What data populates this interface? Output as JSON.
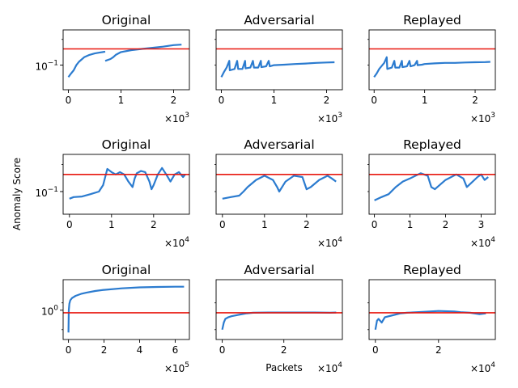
{
  "figure": {
    "ylabel": "Anomaly Score",
    "xlabel": "Packets"
  },
  "colors": {
    "series": "#2b7bcf",
    "threshold": "#e8170f",
    "axis": "#000000"
  },
  "chart_data": [
    {
      "type": "line",
      "title": "Original",
      "row": 0,
      "col": 0,
      "yscale": "log",
      "show_ytick": true,
      "ylim": [
        0.035,
        0.45
      ],
      "threshold": 0.2,
      "yticks": [
        {
          "v": 0.1,
          "text": "10",
          "sup": "−1"
        }
      ],
      "xlim": [
        -0.1,
        2.3
      ],
      "xticks": [
        "0",
        "1",
        "2"
      ],
      "xmult": "×10",
      "xmult_exp": "3",
      "series": [
        {
          "x": [
            0,
            0.05,
            0.1,
            0.15,
            0.2,
            0.3,
            0.4,
            0.5,
            0.6,
            0.7
          ],
          "y": [
            0.06,
            0.07,
            0.08,
            0.1,
            0.115,
            0.14,
            0.155,
            0.165,
            0.172,
            0.178
          ]
        },
        {
          "x": [
            0.7,
            0.75,
            0.8,
            0.85,
            0.9,
            1.0,
            1.2,
            1.4,
            1.6,
            1.8,
            2.0,
            2.15
          ],
          "y": [
            0.12,
            0.125,
            0.13,
            0.14,
            0.155,
            0.175,
            0.19,
            0.2,
            0.21,
            0.22,
            0.235,
            0.24
          ]
        }
      ]
    },
    {
      "type": "line",
      "title": "Adversarial",
      "row": 0,
      "col": 1,
      "yscale": "log",
      "show_ytick": false,
      "ylim": [
        0.035,
        0.45
      ],
      "threshold": 0.2,
      "yticks": [],
      "xlim": [
        -0.1,
        2.3
      ],
      "xticks": [
        "0",
        "1",
        "2"
      ],
      "xmult": "×10",
      "xmult_exp": "3",
      "series": [
        {
          "x": [
            0,
            0.05,
            0.1,
            0.15,
            0.16,
            0.25,
            0.3,
            0.32,
            0.4,
            0.45,
            0.46,
            0.55,
            0.6,
            0.62,
            0.7,
            0.75,
            0.76,
            0.85,
            0.9,
            0.92,
            1.0,
            1.2,
            1.4,
            1.6,
            1.8,
            2.0,
            2.15
          ],
          "y": [
            0.06,
            0.075,
            0.09,
            0.12,
            0.08,
            0.085,
            0.12,
            0.085,
            0.085,
            0.12,
            0.087,
            0.09,
            0.12,
            0.09,
            0.09,
            0.12,
            0.092,
            0.095,
            0.12,
            0.095,
            0.1,
            0.102,
            0.105,
            0.107,
            0.11,
            0.112,
            0.113
          ]
        }
      ]
    },
    {
      "type": "line",
      "title": "Replayed",
      "row": 0,
      "col": 2,
      "yscale": "log",
      "show_ytick": false,
      "ylim": [
        0.035,
        0.45
      ],
      "threshold": 0.2,
      "yticks": [],
      "xlim": [
        -0.1,
        2.4
      ],
      "xticks": [
        "0",
        "1",
        "2"
      ],
      "xmult": "×10",
      "xmult_exp": "3",
      "series": [
        {
          "x": [
            0,
            0.05,
            0.1,
            0.2,
            0.25,
            0.26,
            0.35,
            0.4,
            0.42,
            0.5,
            0.55,
            0.56,
            0.65,
            0.7,
            0.72,
            0.8,
            0.85,
            0.86,
            0.95,
            1.0,
            1.2,
            1.4,
            1.6,
            1.8,
            2.0,
            2.2,
            2.3
          ],
          "y": [
            0.06,
            0.07,
            0.085,
            0.11,
            0.14,
            0.085,
            0.09,
            0.12,
            0.09,
            0.09,
            0.12,
            0.092,
            0.095,
            0.12,
            0.095,
            0.1,
            0.12,
            0.1,
            0.102,
            0.105,
            0.108,
            0.11,
            0.11,
            0.112,
            0.113,
            0.114,
            0.115
          ]
        }
      ]
    },
    {
      "type": "line",
      "title": "Original",
      "row": 1,
      "col": 0,
      "yscale": "log",
      "show_ytick": true,
      "ylim": [
        0.04,
        0.45
      ],
      "threshold": 0.2,
      "yticks": [
        {
          "v": 0.1,
          "text": "10",
          "sup": "−1"
        }
      ],
      "xlim": [
        -0.15,
        2.85
      ],
      "xticks": [
        "0",
        "1",
        "2"
      ],
      "xmult": "×10",
      "xmult_exp": "4",
      "series": [
        {
          "x": [
            0,
            0.1,
            0.3,
            0.5,
            0.7,
            0.8,
            0.9,
            1.0,
            1.1,
            1.2,
            1.3,
            1.4,
            1.5,
            1.55,
            1.6,
            1.7,
            1.8,
            1.9,
            1.95,
            2.0,
            2.1,
            2.2,
            2.3,
            2.4,
            2.5,
            2.6,
            2.7,
            2.75
          ],
          "y": [
            0.075,
            0.08,
            0.082,
            0.09,
            0.1,
            0.13,
            0.25,
            0.22,
            0.2,
            0.22,
            0.2,
            0.15,
            0.12,
            0.17,
            0.21,
            0.23,
            0.22,
            0.15,
            0.11,
            0.13,
            0.2,
            0.26,
            0.2,
            0.15,
            0.2,
            0.22,
            0.18,
            0.2
          ]
        }
      ]
    },
    {
      "type": "line",
      "title": "Adversarial",
      "row": 1,
      "col": 1,
      "yscale": "log",
      "show_ytick": false,
      "ylim": [
        0.04,
        0.45
      ],
      "threshold": 0.2,
      "yticks": [],
      "xlim": [
        -0.15,
        2.85
      ],
      "xticks": [
        "0",
        "1",
        "2"
      ],
      "xmult": "×10",
      "xmult_exp": "4",
      "series": [
        {
          "x": [
            0,
            0.2,
            0.4,
            0.5,
            0.6,
            0.8,
            1.0,
            1.2,
            1.3,
            1.35,
            1.5,
            1.7,
            1.9,
            2.0,
            2.1,
            2.3,
            2.5,
            2.6,
            2.7
          ],
          "y": [
            0.075,
            0.08,
            0.085,
            0.1,
            0.12,
            0.16,
            0.19,
            0.16,
            0.12,
            0.1,
            0.15,
            0.19,
            0.18,
            0.11,
            0.12,
            0.16,
            0.19,
            0.17,
            0.15
          ]
        }
      ]
    },
    {
      "type": "line",
      "title": "Replayed",
      "row": 1,
      "col": 2,
      "yscale": "log",
      "show_ytick": false,
      "ylim": [
        0.04,
        0.45
      ],
      "threshold": 0.2,
      "yticks": [],
      "xlim": [
        -0.15,
        3.4
      ],
      "xticks": [
        "0",
        "1",
        "2",
        "3"
      ],
      "xmult": "×10",
      "xmult_exp": "4",
      "series": [
        {
          "x": [
            0,
            0.2,
            0.4,
            0.6,
            0.8,
            1.0,
            1.3,
            1.5,
            1.6,
            1.7,
            2.0,
            2.3,
            2.5,
            2.6,
            2.9,
            3.0,
            3.1,
            3.2
          ],
          "y": [
            0.07,
            0.08,
            0.09,
            0.12,
            0.15,
            0.17,
            0.21,
            0.19,
            0.12,
            0.11,
            0.16,
            0.2,
            0.17,
            0.12,
            0.18,
            0.2,
            0.16,
            0.18
          ]
        }
      ]
    },
    {
      "type": "line",
      "title": "Original",
      "row": 2,
      "col": 0,
      "yscale": "log",
      "show_ytick": true,
      "ylim": [
        0.3,
        3.5
      ],
      "threshold": 0.9,
      "yticks": [
        {
          "v": 1.0,
          "text": "10",
          "sup": "0"
        }
      ],
      "xlim": [
        -0.3,
        6.8
      ],
      "xticks": [
        "0",
        "2",
        "4",
        "6"
      ],
      "xmult": "×10",
      "xmult_exp": "5",
      "series": [
        {
          "x": [
            0,
            0.02,
            0.05,
            0.1,
            0.2,
            0.4,
            0.7,
            1.0,
            1.5,
            2.0,
            3.0,
            4.0,
            5.0,
            6.0,
            6.5
          ],
          "y": [
            0.4,
            1.0,
            1.3,
            1.5,
            1.65,
            1.8,
            1.95,
            2.05,
            2.2,
            2.3,
            2.45,
            2.55,
            2.6,
            2.62,
            2.62
          ]
        }
      ]
    },
    {
      "type": "line",
      "title": "Adversarial",
      "row": 2,
      "col": 1,
      "yscale": "log",
      "show_ytick": false,
      "ylim": [
        0.3,
        3.5
      ],
      "threshold": 0.9,
      "yticks": [],
      "xlim": [
        -0.2,
        3.9
      ],
      "xticks": [
        "0",
        "2"
      ],
      "xmult": "×10",
      "xmult_exp": "4",
      "series": [
        {
          "x": [
            0,
            0.05,
            0.1,
            0.2,
            0.3,
            0.5,
            0.8,
            1.0,
            1.5,
            2.0,
            2.5,
            3.0,
            3.5,
            3.7
          ],
          "y": [
            0.45,
            0.6,
            0.7,
            0.75,
            0.78,
            0.82,
            0.88,
            0.9,
            0.91,
            0.91,
            0.91,
            0.91,
            0.9,
            0.91
          ]
        }
      ]
    },
    {
      "type": "line",
      "title": "Replayed",
      "row": 2,
      "col": 2,
      "yscale": "log",
      "show_ytick": false,
      "ylim": [
        0.3,
        3.5
      ],
      "threshold": 0.9,
      "yticks": [],
      "xlim": [
        -0.2,
        3.8
      ],
      "xticks": [
        "0",
        "2"
      ],
      "xmult": "×10",
      "xmult_exp": "4",
      "series": [
        {
          "x": [
            0,
            0.05,
            0.1,
            0.2,
            0.3,
            0.5,
            0.8,
            1.0,
            1.5,
            2.0,
            2.5,
            2.7,
            3.0,
            3.3,
            3.5
          ],
          "y": [
            0.45,
            0.65,
            0.7,
            0.6,
            0.75,
            0.8,
            0.88,
            0.9,
            0.93,
            0.97,
            0.95,
            0.92,
            0.9,
            0.85,
            0.88
          ]
        }
      ]
    }
  ]
}
